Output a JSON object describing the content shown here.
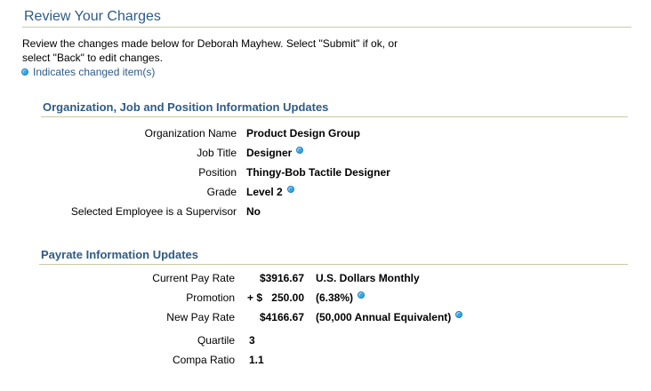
{
  "page": {
    "title": "Review Your Charges",
    "intro_line1": "Review the changes made below for Deborah Mayhew.  Select \"Submit\" if ok, or",
    "intro_line2": "select \"Back\" to edit changes.",
    "legend_text": "Indicates changed item(s)",
    "changed_indicator_icon": "blue-dot-icon",
    "accent_color": "#2e5b86",
    "indicator_color": "#2fa6e6"
  },
  "org_section": {
    "header": "Organization, Job and Position Information Updates",
    "rows": [
      {
        "label": "Organization Name",
        "value": "Product Design Group",
        "changed": false
      },
      {
        "label": "Job Title",
        "value": "Designer",
        "changed": true
      },
      {
        "label": "Position",
        "value": "Thingy-Bob Tactile Designer",
        "changed": false
      },
      {
        "label": "Grade",
        "value": "Level 2",
        "changed": true
      },
      {
        "label": "Selected Employee is a Supervisor",
        "value": "No",
        "changed": false
      }
    ]
  },
  "payrate_section": {
    "header": "Payrate Information Updates",
    "current": {
      "label": "Current Pay Rate",
      "amount": "$3916.67",
      "desc": "U.S. Dollars Monthly"
    },
    "promotion": {
      "label": "Promotion",
      "prefix": "+ $",
      "amount": "250.00",
      "desc": "(6.38%)"
    },
    "new_rate": {
      "label": "New Pay Rate",
      "amount": "$4166.67",
      "desc": "(50,000 Annual Equivalent)"
    },
    "quartile": {
      "label": "Quartile",
      "value": "3"
    },
    "compa_ratio": {
      "label": "Compa Ratio",
      "value": "1.1"
    }
  }
}
